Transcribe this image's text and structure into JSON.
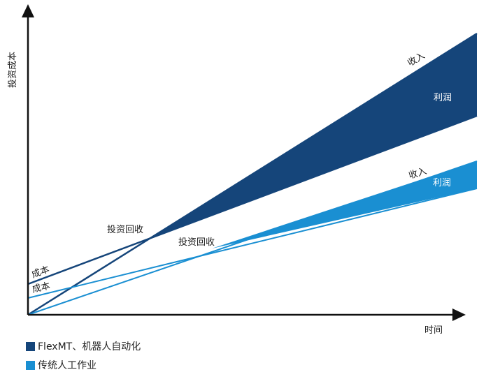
{
  "axes": {
    "y_label": "投资成本",
    "x_label": "时间"
  },
  "series": [
    {
      "name": "FlexMT、机器人自动化",
      "color": "#15457a",
      "cost_label": "成本",
      "revenue_label": "收入",
      "profit_label": "利润",
      "breakeven_label": "投资回收"
    },
    {
      "name": "传统人工作业",
      "color": "#1a8fd2",
      "cost_label": "成本",
      "revenue_label": "收入",
      "profit_label": "利润",
      "breakeven_label": "投资回收"
    }
  ],
  "legend": {
    "item1": "FlexMT、机器人自动化",
    "item2": "传统人工作业"
  },
  "colors": {
    "dark_blue": "#15457a",
    "light_blue": "#1a8fd2",
    "axis": "#111111"
  }
}
